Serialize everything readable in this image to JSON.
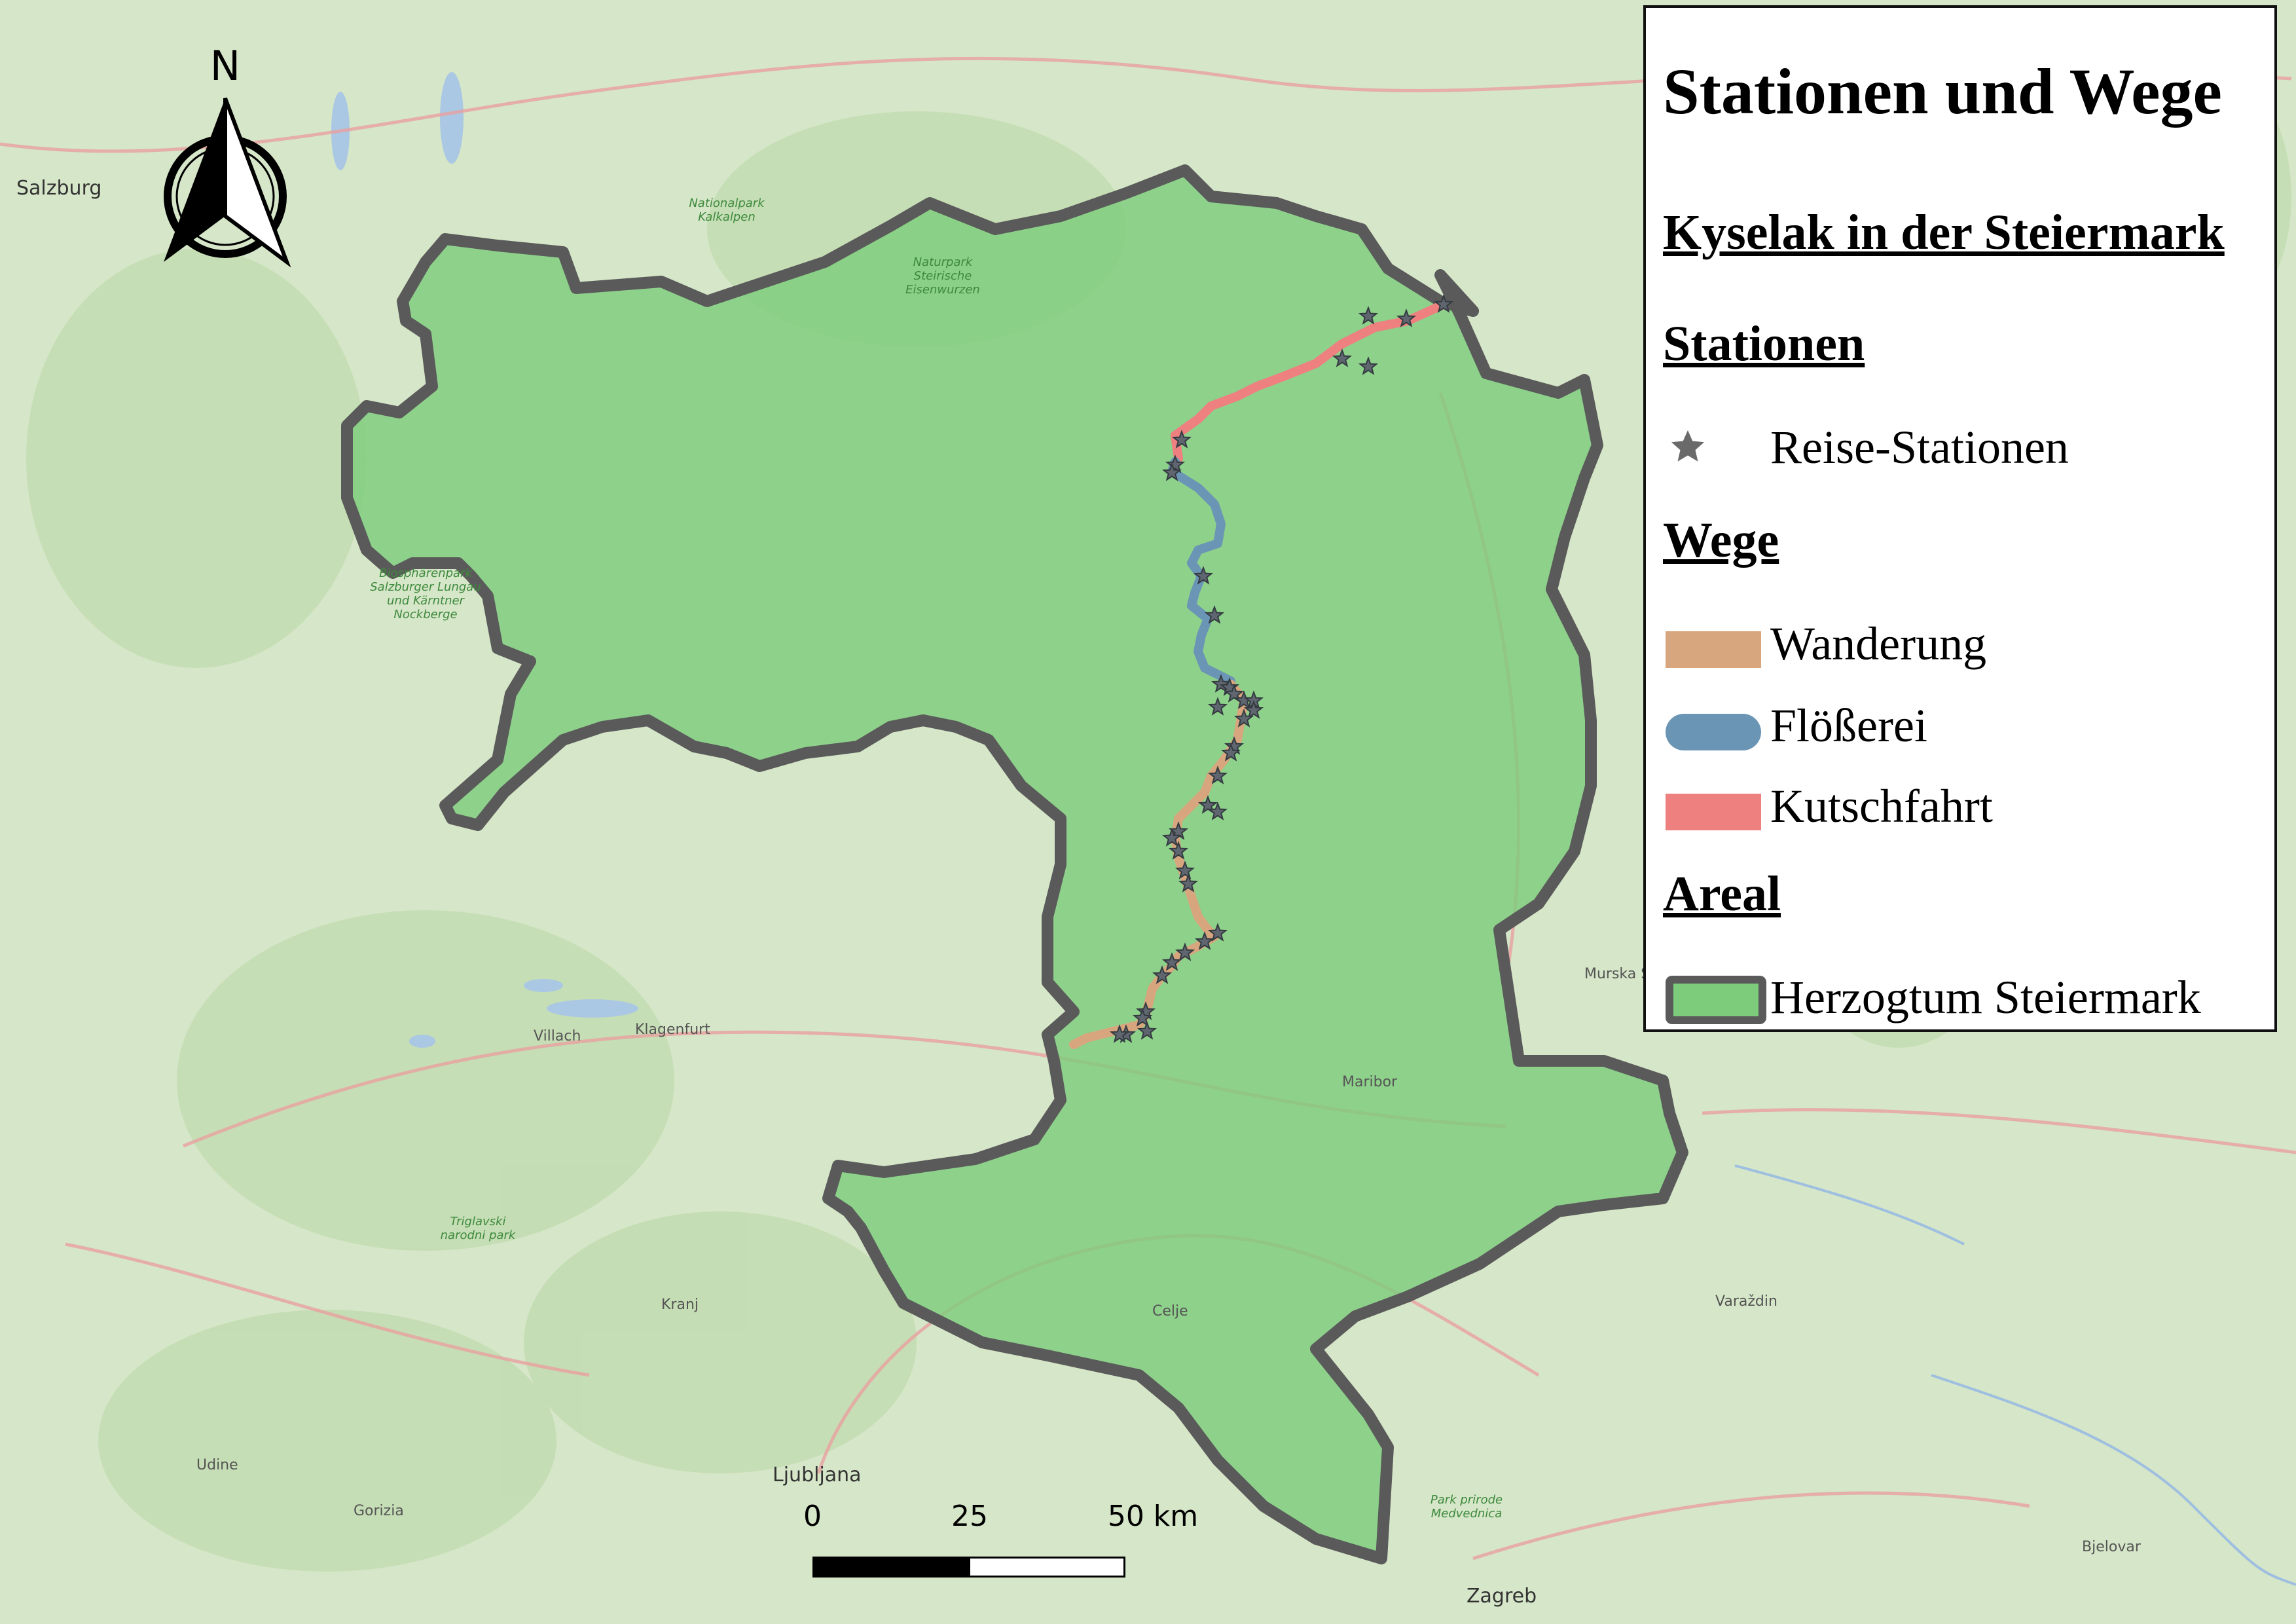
{
  "legend": {
    "title": "Stationen und Wege",
    "subtitle": "Kyselak in der Steiermark",
    "stations_heading": "Stationen",
    "station_label": "Reise-Stationen",
    "routes_heading": "Wege",
    "routes": [
      {
        "label": "Wanderung",
        "color": "#d8a67e"
      },
      {
        "label": "Flößerei",
        "color": "#6b95b5"
      },
      {
        "label": "Kutschfahrt",
        "color": "#ee8080"
      }
    ],
    "area_heading": "Areal",
    "area_label": "Herzogtum Steiermark",
    "area_fill": "#7ccc7c",
    "area_border": "#5a5a5a"
  },
  "north_arrow": {
    "label": "N"
  },
  "scale": {
    "labels": [
      "0",
      "25",
      "50 km"
    ]
  },
  "basemap": {
    "background": "#d6e6c8",
    "place_labels": [
      {
        "text": "Salzburg",
        "big": true
      },
      {
        "text": "Villach"
      },
      {
        "text": "Klagenfurt"
      },
      {
        "text": "Maribor"
      },
      {
        "text": "Ljubljana",
        "big": true
      },
      {
        "text": "Zagreb",
        "big": true
      },
      {
        "text": "Celje"
      },
      {
        "text": "Kranj"
      },
      {
        "text": "Udine"
      },
      {
        "text": "Gorizia"
      },
      {
        "text": "Varaždin"
      },
      {
        "text": "Bjelovar"
      },
      {
        "text": "Murska Sobota"
      }
    ],
    "park_labels": [
      {
        "text": "Nationalpark Kalkalpen"
      },
      {
        "text": "Naturpark Steirische Eisenwurzen"
      },
      {
        "text": "Biosphärenpark Salzburger Lungau und Kärntner Nockberge"
      },
      {
        "text": "Triglavski narodni park"
      },
      {
        "text": "Park prirode Medvednica"
      }
    ]
  }
}
